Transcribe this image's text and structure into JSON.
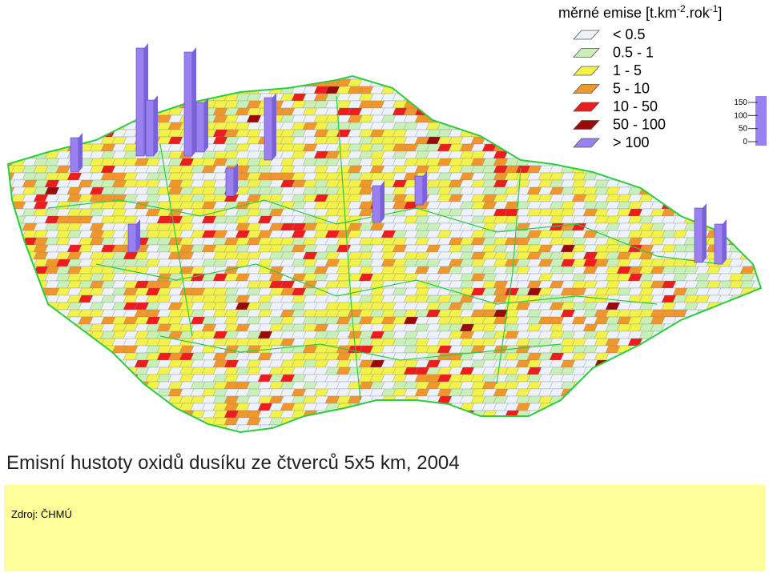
{
  "legend": {
    "title": "měrné emise [t.km",
    "title_sup1": "-2",
    "title_mid": ".rok",
    "title_sup2": "-1",
    "title_end": "]",
    "items": [
      {
        "label": "< 0.5",
        "color": "#eef2fb"
      },
      {
        "label": "0.5 - 1",
        "color": "#c8f0b8"
      },
      {
        "label": "1 - 5",
        "color": "#f2f24a"
      },
      {
        "label": "5 - 10",
        "color": "#f0962a"
      },
      {
        "label": "10 - 50",
        "color": "#ee1c1c"
      },
      {
        "label": "50 - 100",
        "color": "#9a0a0a"
      },
      {
        "label": "> 100",
        "color": "#9a80f0"
      }
    ]
  },
  "scale": {
    "ticks": [
      150,
      100,
      50,
      0
    ]
  },
  "caption": "Emisní hustoty oxidů dusíku ze čtverců 5x5 km, 2004",
  "source": "Zdroj: ČHMÚ"
}
